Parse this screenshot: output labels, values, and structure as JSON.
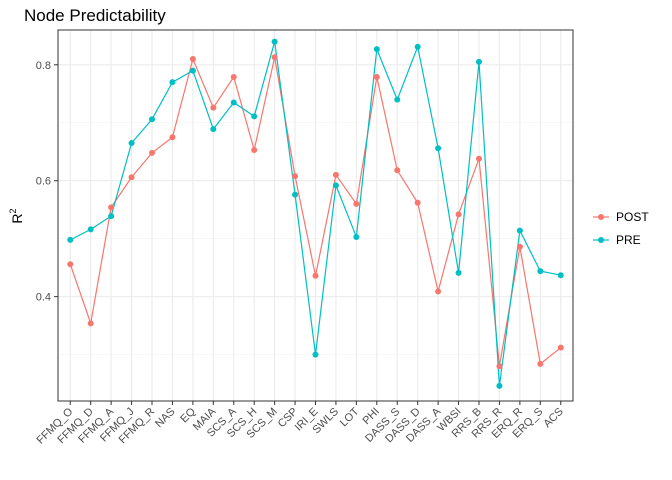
{
  "chart_data": {
    "type": "line",
    "title": "Node Predictability",
    "xlabel": "",
    "ylabel": "R",
    "ylabel_superscript": "2",
    "ylim": [
      0.22,
      0.86
    ],
    "yticks": [
      0.4,
      0.6,
      0.8
    ],
    "ytick_labels": [
      "0.4",
      "0.6",
      "0.8"
    ],
    "grid": true,
    "legend_position": "right",
    "categories": [
      "FFMQ_O",
      "FFMQ_D",
      "FFMQ_A",
      "FFMQ_J",
      "FFMQ_R",
      "NAS",
      "EQ",
      "MAIA",
      "SCS_A",
      "SCS_H",
      "SCS_M",
      "CSP",
      "IRI_E",
      "SWLS",
      "LOT",
      "PHI",
      "DASS_S",
      "DASS_D",
      "DASS_A",
      "WBSI",
      "RRS_B",
      "RRS_R",
      "ERQ_R",
      "ERQ_S",
      "ACS"
    ],
    "series": [
      {
        "name": "POST",
        "color": "#F8766D",
        "values": [
          0.456,
          0.354,
          0.554,
          0.606,
          0.648,
          0.675,
          0.81,
          0.726,
          0.779,
          0.653,
          0.813,
          0.608,
          0.436,
          0.61,
          0.56,
          0.779,
          0.618,
          0.562,
          0.409,
          0.542,
          0.638,
          0.28,
          0.486,
          0.284,
          0.312
        ]
      },
      {
        "name": "PRE",
        "color": "#00BFC4",
        "values": [
          0.498,
          0.516,
          0.539,
          0.665,
          0.706,
          0.77,
          0.79,
          0.689,
          0.735,
          0.711,
          0.84,
          0.576,
          0.3,
          0.592,
          0.503,
          0.827,
          0.74,
          0.831,
          0.656,
          0.441,
          0.805,
          0.246,
          0.514,
          0.444,
          0.437
        ]
      }
    ]
  }
}
